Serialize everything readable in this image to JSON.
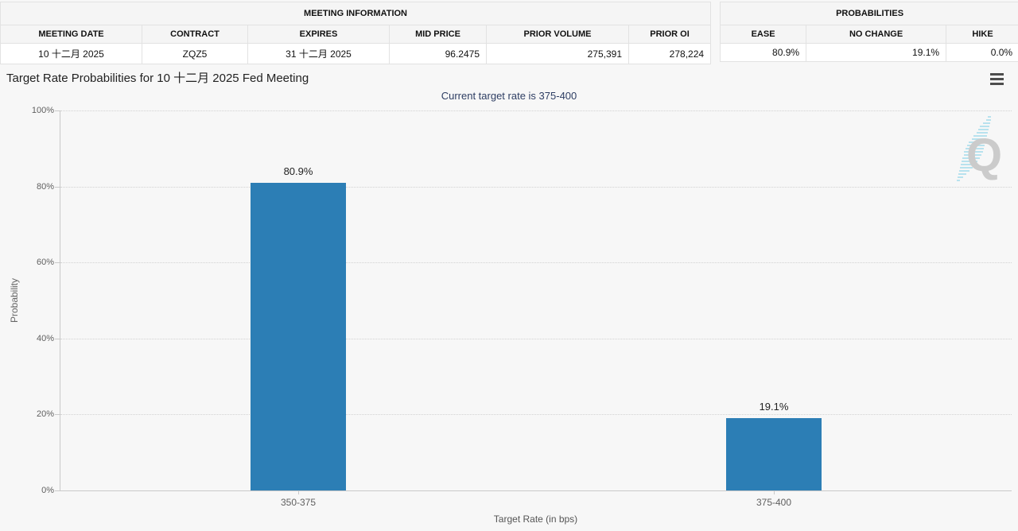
{
  "meeting_info": {
    "title": "MEETING INFORMATION",
    "columns": [
      "MEETING DATE",
      "CONTRACT",
      "EXPIRES",
      "MID PRICE",
      "PRIOR VOLUME",
      "PRIOR OI"
    ],
    "values": [
      "10 十二月 2025",
      "ZQZ5",
      "31 十二月 2025",
      "96.2475",
      "275,391",
      "278,224"
    ]
  },
  "probabilities": {
    "title": "PROBABILITIES",
    "columns": [
      "EASE",
      "NO CHANGE",
      "HIKE"
    ],
    "values": [
      "80.9%",
      "19.1%",
      "0.0%"
    ]
  },
  "chart": {
    "title": "Target Rate Probabilities for 10 十二月 2025 Fed Meeting",
    "subtitle": "Current target rate is 375-400",
    "watermark_letter": "Q",
    "menu_icon": "hamburger-icon"
  },
  "chart_data": {
    "type": "bar",
    "title": "Target Rate Probabilities for 10 十二月 2025 Fed Meeting",
    "subtitle": "Current target rate is 375-400",
    "categories": [
      "350-375",
      "375-400"
    ],
    "values": [
      80.9,
      19.1
    ],
    "value_labels": [
      "80.9%",
      "19.1%"
    ],
    "xlabel": "Target Rate (in bps)",
    "ylabel": "Probability",
    "ylim": [
      0,
      100
    ],
    "y_tick_values": [
      0,
      20,
      40,
      60,
      80,
      100
    ],
    "y_tick_labels": [
      "0%",
      "20%",
      "40%",
      "60%",
      "80%",
      "100%"
    ],
    "bar_color": "#2c7eb5",
    "grid": "dotted-horizontal",
    "legend": "none"
  }
}
